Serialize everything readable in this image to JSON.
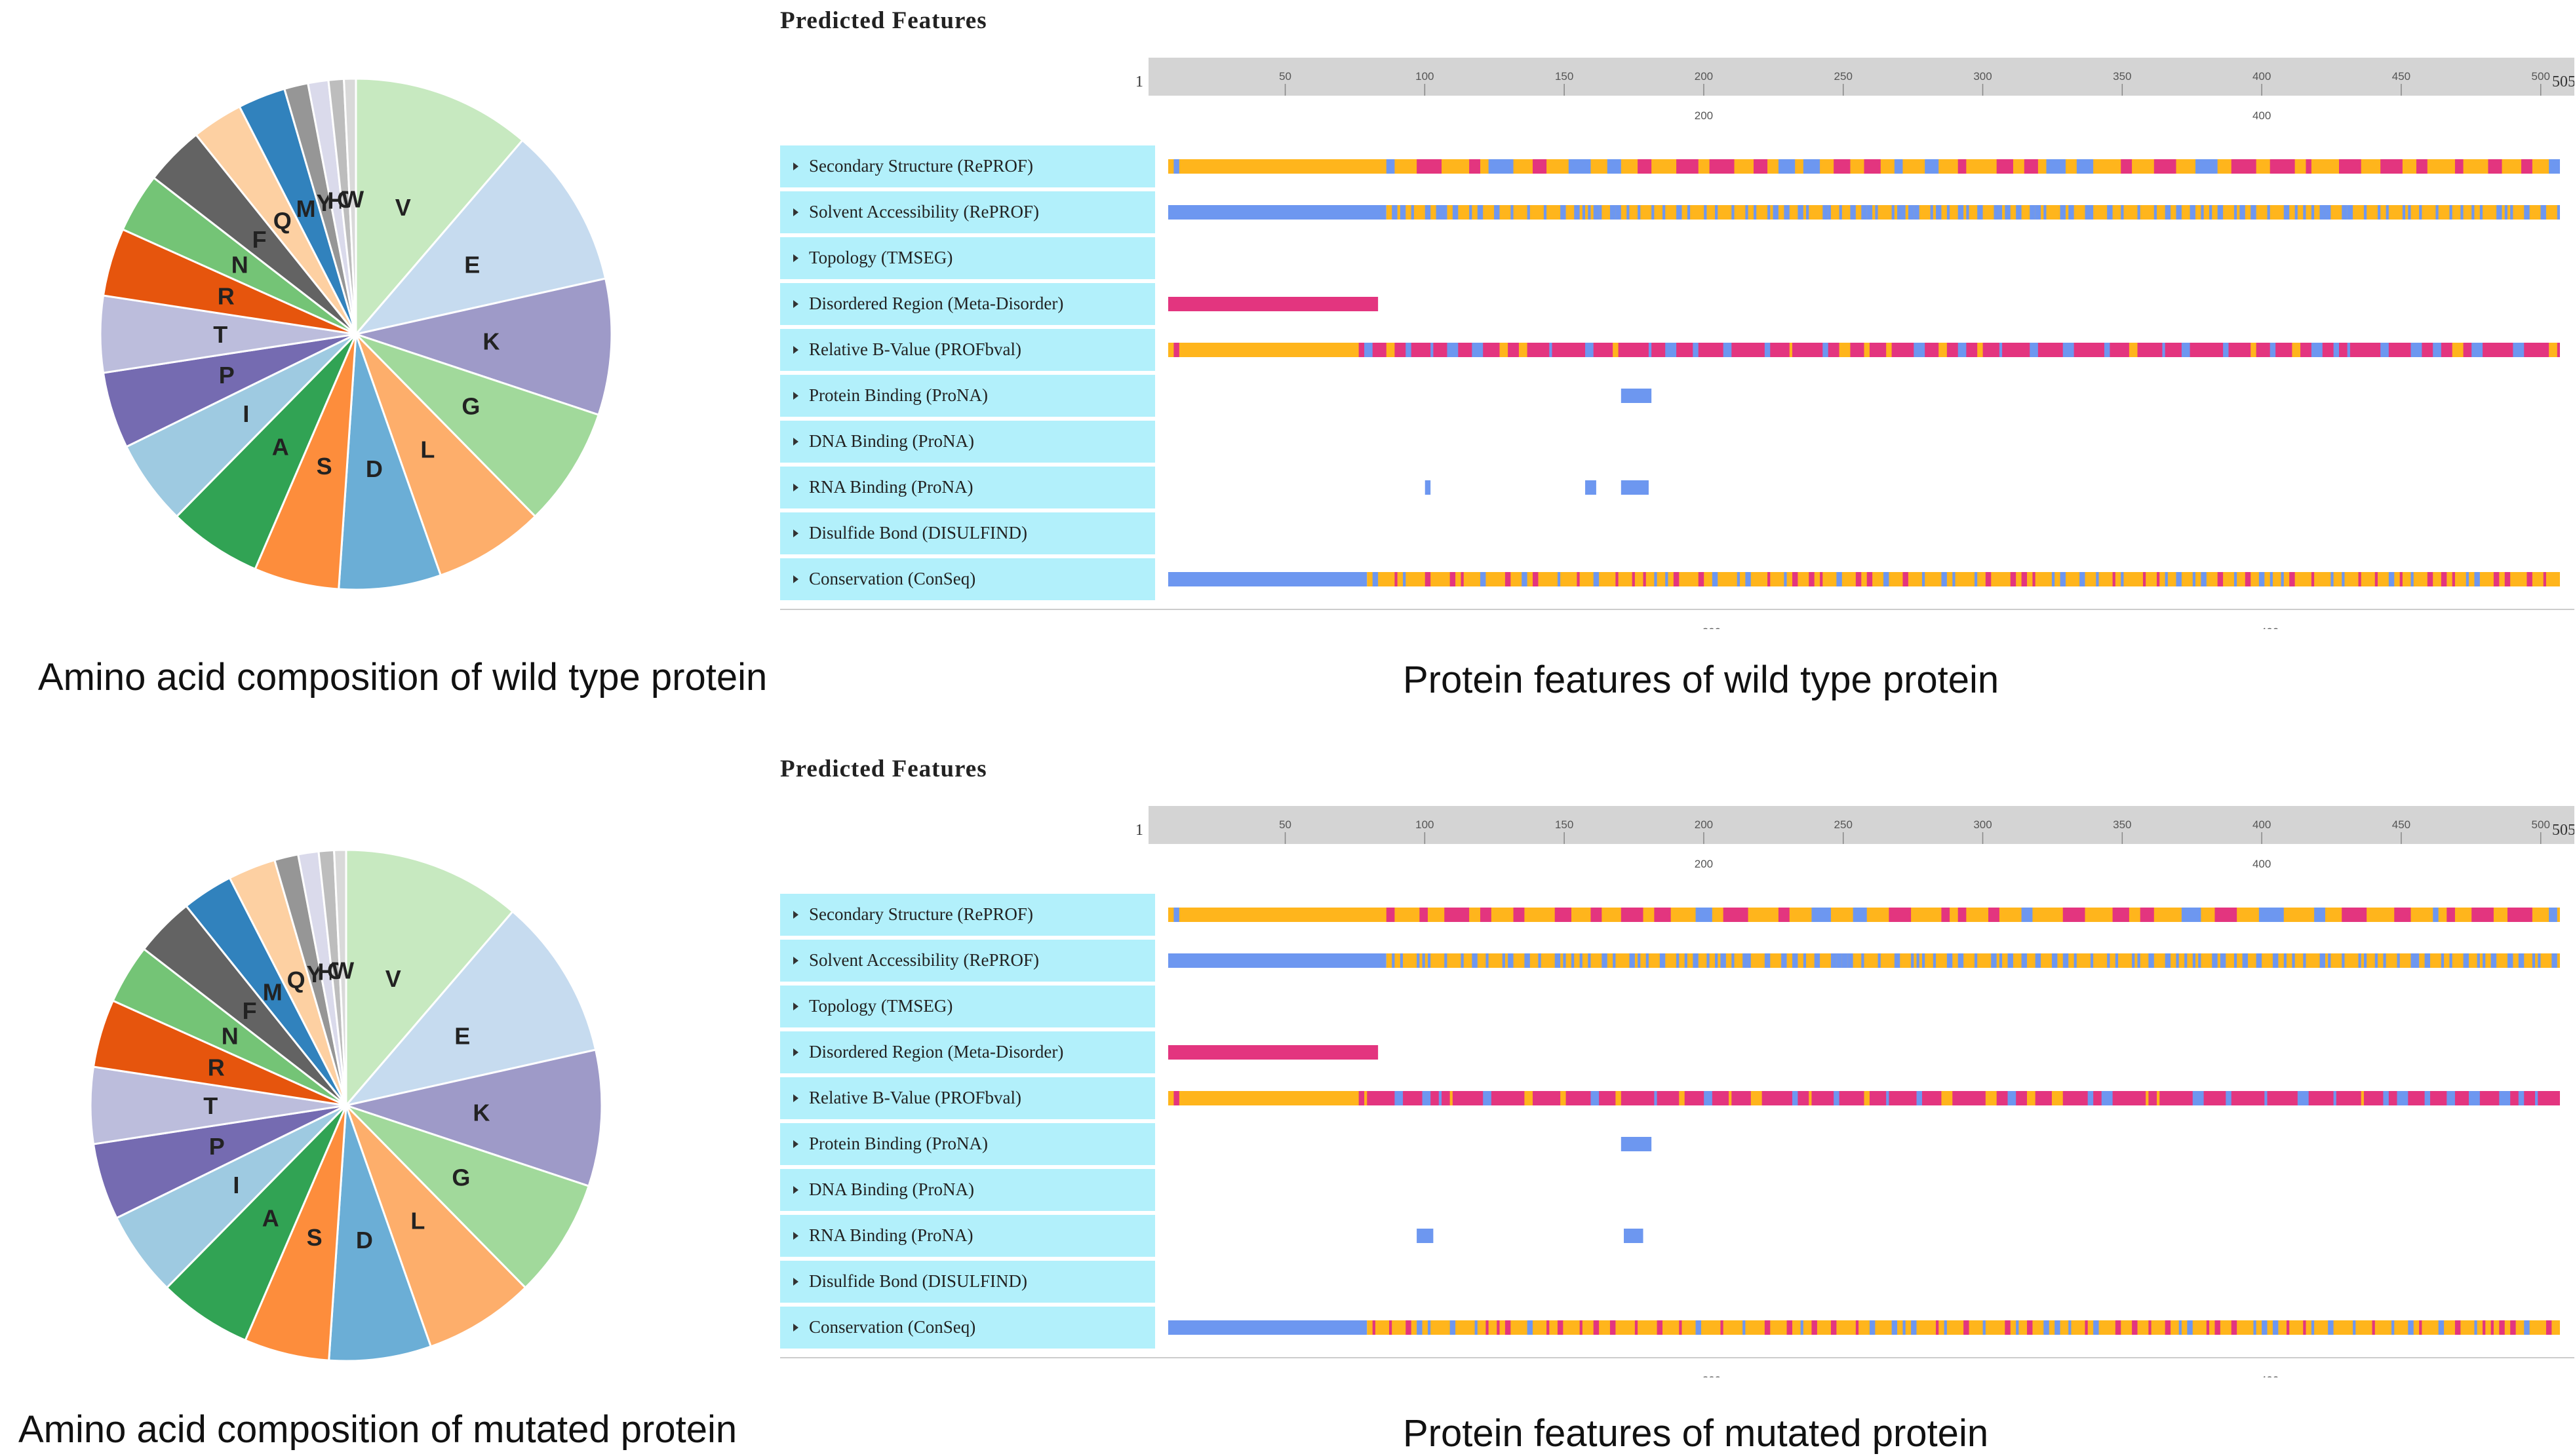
{
  "palette": {
    "orange": "#ffb51c",
    "pink": "#e3357f",
    "blue": "#6d97f0",
    "ruler": "#d4d4d4",
    "label_bg": "#b2f0fb"
  },
  "captions": {
    "wild_pie": "Amino acid composition of wild type protein",
    "wild_features": "Protein features of wild type protein",
    "mut_pie": "Amino acid composition of mutated protein",
    "mut_features": "Protein features of mutated protein"
  },
  "chart_data": [
    {
      "type": "pie",
      "slices": [
        {
          "label": "V",
          "value": 10.5,
          "color": "#c7e9c0"
        },
        {
          "label": "E",
          "value": 9.5,
          "color": "#c6dbef"
        },
        {
          "label": "K",
          "value": 8.0,
          "color": "#9e9ac8"
        },
        {
          "label": "G",
          "value": 7.0,
          "color": "#a1d99b"
        },
        {
          "label": "L",
          "value": 6.5,
          "color": "#fdae6b"
        },
        {
          "label": "D",
          "value": 6.0,
          "color": "#6baed6"
        },
        {
          "label": "S",
          "value": 5.0,
          "color": "#fd8d3c"
        },
        {
          "label": "A",
          "value": 5.5,
          "color": "#31a354"
        },
        {
          "label": "I",
          "value": 5.0,
          "color": "#9ecae1"
        },
        {
          "label": "P",
          "value": 4.5,
          "color": "#756bb1"
        },
        {
          "label": "T",
          "value": 4.5,
          "color": "#bcbddc"
        },
        {
          "label": "R",
          "value": 4.0,
          "color": "#e6550d"
        },
        {
          "label": "N",
          "value": 3.5,
          "color": "#74c476"
        },
        {
          "label": "F",
          "value": 3.5,
          "color": "#636363"
        },
        {
          "label": "Q",
          "value": 3.0,
          "color": "#fdd0a2"
        },
        {
          "label": "M",
          "value": 2.8,
          "color": "#3182bd"
        },
        {
          "label": "Y",
          "value": 1.4,
          "color": "#969696"
        },
        {
          "label": "H",
          "value": 1.2,
          "color": "#dadaeb"
        },
        {
          "label": "C",
          "value": 0.9,
          "color": "#bdbdbd"
        },
        {
          "label": "W",
          "value": 0.7,
          "color": "#d9d9d9"
        }
      ]
    },
    {
      "type": "track",
      "title": "Predicted Features",
      "ruler": {
        "start": "1",
        "end": "505",
        "top_ticks": [
          50,
          100,
          150,
          200,
          250,
          300,
          350,
          400,
          450,
          500
        ],
        "sub_ticks": [
          200,
          400
        ]
      },
      "tracks": [
        {
          "label": "Secondary Structure (RePROF)",
          "pattern": "ss"
        },
        {
          "label": "Solvent Accessibility (RePROF)",
          "pattern": "sa"
        },
        {
          "label": "Topology (TMSEG)",
          "pattern": "none"
        },
        {
          "label": "Disordered Region (Meta-Disorder)",
          "pattern": "dis"
        },
        {
          "label": "Relative B-Value (PROFbval)",
          "pattern": "bval"
        },
        {
          "label": "Protein Binding (ProNA)",
          "pattern": "prot"
        },
        {
          "label": "DNA Binding (ProNA)",
          "pattern": "none"
        },
        {
          "label": "RNA Binding (ProNA)",
          "pattern": "rna"
        },
        {
          "label": "Disulfide Bond (DISULFIND)",
          "pattern": "none"
        },
        {
          "label": "Conservation (ConSeq)",
          "pattern": "cons"
        }
      ],
      "bottom_ticks": [
        200,
        400
      ],
      "segments": {
        "prot": [
          [
            165,
            176
          ]
        ],
        "rna": [
          [
            94,
            96
          ],
          [
            152,
            156
          ],
          [
            165,
            175
          ]
        ],
        "dis": [
          [
            1,
            77
          ]
        ]
      }
    },
    {
      "type": "pie",
      "slices": [
        {
          "label": "V",
          "value": 10.5,
          "color": "#c7e9c0"
        },
        {
          "label": "E",
          "value": 9.5,
          "color": "#c6dbef"
        },
        {
          "label": "K",
          "value": 8.0,
          "color": "#9e9ac8"
        },
        {
          "label": "G",
          "value": 7.0,
          "color": "#a1d99b"
        },
        {
          "label": "L",
          "value": 6.5,
          "color": "#fdae6b"
        },
        {
          "label": "D",
          "value": 6.0,
          "color": "#6baed6"
        },
        {
          "label": "S",
          "value": 5.0,
          "color": "#fd8d3c"
        },
        {
          "label": "A",
          "value": 5.5,
          "color": "#31a354"
        },
        {
          "label": "I",
          "value": 5.0,
          "color": "#9ecae1"
        },
        {
          "label": "P",
          "value": 4.5,
          "color": "#756bb1"
        },
        {
          "label": "T",
          "value": 4.5,
          "color": "#bcbddc"
        },
        {
          "label": "R",
          "value": 4.0,
          "color": "#e6550d"
        },
        {
          "label": "N",
          "value": 3.5,
          "color": "#74c476"
        },
        {
          "label": "F",
          "value": 3.5,
          "color": "#636363"
        },
        {
          "label": "M",
          "value": 3.0,
          "color": "#3182bd"
        },
        {
          "label": "Q",
          "value": 2.8,
          "color": "#fdd0a2"
        },
        {
          "label": "Y",
          "value": 1.4,
          "color": "#969696"
        },
        {
          "label": "H",
          "value": 1.2,
          "color": "#dadaeb"
        },
        {
          "label": "C",
          "value": 0.9,
          "color": "#bdbdbd"
        },
        {
          "label": "W",
          "value": 0.7,
          "color": "#d9d9d9"
        }
      ]
    },
    {
      "type": "track",
      "title": "Predicted Features",
      "ruler": {
        "start": "1",
        "end": "505",
        "top_ticks": [
          50,
          100,
          150,
          200,
          250,
          300,
          350,
          400,
          450,
          500
        ],
        "sub_ticks": [
          200,
          400
        ]
      },
      "tracks": [
        {
          "label": "Secondary Structure (RePROF)",
          "pattern": "ss"
        },
        {
          "label": "Solvent Accessibility (RePROF)",
          "pattern": "sa"
        },
        {
          "label": "Topology (TMSEG)",
          "pattern": "none"
        },
        {
          "label": "Disordered Region (Meta-Disorder)",
          "pattern": "dis"
        },
        {
          "label": "Relative B-Value (PROFbval)",
          "pattern": "bval"
        },
        {
          "label": "Protein Binding (ProNA)",
          "pattern": "prot"
        },
        {
          "label": "DNA Binding (ProNA)",
          "pattern": "none"
        },
        {
          "label": "RNA Binding (ProNA)",
          "pattern": "rna"
        },
        {
          "label": "Disulfide Bond (DISULFIND)",
          "pattern": "none"
        },
        {
          "label": "Conservation (ConSeq)",
          "pattern": "cons"
        }
      ],
      "bottom_ticks": [
        200,
        400
      ],
      "segments": {
        "prot": [
          [
            165,
            176
          ]
        ],
        "rna": [
          [
            91,
            97
          ],
          [
            166,
            173
          ]
        ],
        "dis": [
          [
            1,
            77
          ]
        ]
      }
    }
  ]
}
